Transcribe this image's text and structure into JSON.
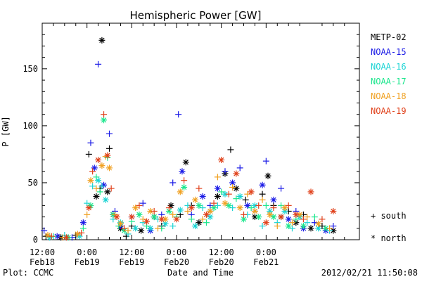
{
  "chart_data": {
    "type": "scatter",
    "title": "Hemispheric Power [GW]",
    "xlabel": "Date and Time",
    "ylabel": "P [GW]",
    "ylim": [
      0,
      190
    ],
    "xlim": [
      0,
      85
    ],
    "yticks": [
      0,
      50,
      100,
      150
    ],
    "xticks": [
      {
        "x": 0,
        "label1": "12:00",
        "label2": "Feb18"
      },
      {
        "x": 12,
        "label1": "0:00",
        "label2": "Feb19"
      },
      {
        "x": 24,
        "label1": "12:00",
        "label2": "Feb19"
      },
      {
        "x": 36,
        "label1": "0:00",
        "label2": "Feb20"
      },
      {
        "x": 48,
        "label1": "12:00",
        "label2": "Feb20"
      },
      {
        "x": 60,
        "label1": "0:00",
        "label2": "Feb21"
      }
    ],
    "x_unit": "hours after 2012-02-18 12:00",
    "legend_position": "right",
    "marker_legend": {
      "south": "+ south",
      "north": "* north"
    },
    "footer_left": "Plot: CCMC",
    "footer_right": "2012/02/21 11:50:08",
    "series": [
      {
        "name": "METP-02",
        "color": "#000000",
        "points": [
          [
            1,
            3,
            "s"
          ],
          [
            5,
            2,
            "n"
          ],
          [
            9,
            4,
            "s"
          ],
          [
            12.5,
            75,
            "s"
          ],
          [
            14.5,
            38,
            "n"
          ],
          [
            15.5,
            45,
            "s"
          ],
          [
            16,
            175,
            "n"
          ],
          [
            17.5,
            42,
            "n"
          ],
          [
            18,
            80,
            "s"
          ],
          [
            19,
            22,
            "n"
          ],
          [
            21,
            10,
            "n"
          ],
          [
            22.5,
            3,
            "s"
          ],
          [
            24,
            12,
            "s"
          ],
          [
            26.5,
            8,
            "n"
          ],
          [
            30,
            20,
            "n"
          ],
          [
            32,
            12,
            "s"
          ],
          [
            34.5,
            30,
            "n"
          ],
          [
            37,
            22,
            "s"
          ],
          [
            38.5,
            68,
            "n"
          ],
          [
            40,
            30,
            "s"
          ],
          [
            42,
            15,
            "n"
          ],
          [
            45,
            25,
            "s"
          ],
          [
            47,
            38,
            "n"
          ],
          [
            49,
            58,
            "n"
          ],
          [
            50.5,
            79,
            "s"
          ],
          [
            52,
            45,
            "n"
          ],
          [
            54.5,
            35,
            "s"
          ],
          [
            57,
            20,
            "n"
          ],
          [
            59,
            40,
            "s"
          ],
          [
            60.5,
            56,
            "n"
          ],
          [
            62,
            30,
            "s"
          ],
          [
            64,
            20,
            "n"
          ],
          [
            66,
            25,
            "s"
          ],
          [
            68,
            15,
            "n"
          ],
          [
            70,
            22,
            "s"
          ],
          [
            72,
            10,
            "n"
          ],
          [
            75,
            12,
            "s"
          ],
          [
            78,
            8,
            "n"
          ]
        ]
      },
      {
        "name": "NOAA-15",
        "color": "#1a1ae6",
        "points": [
          [
            0.5,
            8,
            "s"
          ],
          [
            4,
            3,
            "n"
          ],
          [
            8,
            2,
            "s"
          ],
          [
            11,
            15,
            "n"
          ],
          [
            13,
            85,
            "s"
          ],
          [
            14,
            63,
            "n"
          ],
          [
            15,
            154,
            "s"
          ],
          [
            16.5,
            48,
            "n"
          ],
          [
            18,
            93,
            "s"
          ],
          [
            19.5,
            25,
            "s"
          ],
          [
            21,
            12,
            "n"
          ],
          [
            24,
            20,
            "s"
          ],
          [
            27,
            32,
            "s"
          ],
          [
            29,
            8,
            "n"
          ],
          [
            32,
            22,
            "s"
          ],
          [
            35,
            50,
            "s"
          ],
          [
            36.5,
            110,
            "s"
          ],
          [
            37.5,
            60,
            "n"
          ],
          [
            40,
            22,
            "s"
          ],
          [
            43,
            38,
            "n"
          ],
          [
            45,
            30,
            "s"
          ],
          [
            47,
            45,
            "n"
          ],
          [
            49,
            60,
            "s"
          ],
          [
            51,
            50,
            "n"
          ],
          [
            53,
            63,
            "s"
          ],
          [
            55,
            30,
            "n"
          ],
          [
            57,
            25,
            "s"
          ],
          [
            59,
            48,
            "n"
          ],
          [
            60,
            69,
            "s"
          ],
          [
            62,
            35,
            "n"
          ],
          [
            64,
            45,
            "s"
          ],
          [
            66,
            18,
            "n"
          ],
          [
            68,
            25,
            "s"
          ],
          [
            70,
            10,
            "n"
          ],
          [
            73,
            15,
            "s"
          ],
          [
            76,
            8,
            "n"
          ],
          [
            78,
            12,
            "s"
          ]
        ]
      },
      {
        "name": "NOAA-16",
        "color": "#1ad4d4",
        "points": [
          [
            2,
            2,
            "n"
          ],
          [
            6,
            4,
            "s"
          ],
          [
            10,
            3,
            "n"
          ],
          [
            12,
            32,
            "s"
          ],
          [
            13.5,
            47,
            "s"
          ],
          [
            15,
            52,
            "n"
          ],
          [
            16,
            47,
            "s"
          ],
          [
            17,
            35,
            "n"
          ],
          [
            19,
            18,
            "s"
          ],
          [
            21,
            15,
            "n"
          ],
          [
            23,
            5,
            "s"
          ],
          [
            25,
            10,
            "n"
          ],
          [
            27,
            15,
            "s"
          ],
          [
            29,
            10,
            "n"
          ],
          [
            31,
            18,
            "s"
          ],
          [
            33,
            14,
            "n"
          ],
          [
            35,
            12,
            "s"
          ],
          [
            37,
            26,
            "n"
          ],
          [
            39,
            30,
            "s"
          ],
          [
            41,
            12,
            "n"
          ],
          [
            43,
            28,
            "s"
          ],
          [
            45,
            20,
            "n"
          ],
          [
            47,
            30,
            "s"
          ],
          [
            49,
            40,
            "n"
          ],
          [
            51,
            28,
            "s"
          ],
          [
            53,
            38,
            "n"
          ],
          [
            55,
            22,
            "s"
          ],
          [
            57,
            30,
            "n"
          ],
          [
            59,
            12,
            "s"
          ],
          [
            61,
            25,
            "n"
          ],
          [
            63,
            15,
            "s"
          ],
          [
            65,
            25,
            "n"
          ],
          [
            67,
            10,
            "s"
          ],
          [
            69,
            20,
            "n"
          ],
          [
            71,
            15,
            "s"
          ],
          [
            74,
            10,
            "n"
          ],
          [
            77,
            8,
            "s"
          ]
        ]
      },
      {
        "name": "NOAA-17",
        "color": "#1ae68c",
        "points": [
          [
            3,
            3,
            "s"
          ],
          [
            7,
            2,
            "n"
          ],
          [
            11,
            10,
            "s"
          ],
          [
            13,
            30,
            "n"
          ],
          [
            14.5,
            55,
            "s"
          ],
          [
            15.5,
            42,
            "s"
          ],
          [
            16.5,
            105,
            "n"
          ],
          [
            17.5,
            72,
            "s"
          ],
          [
            19,
            22,
            "n"
          ],
          [
            20.5,
            12,
            "s"
          ],
          [
            22,
            8,
            "n"
          ],
          [
            24,
            16,
            "s"
          ],
          [
            26,
            22,
            "n"
          ],
          [
            28,
            12,
            "s"
          ],
          [
            30,
            20,
            "n"
          ],
          [
            32,
            10,
            "s"
          ],
          [
            34,
            25,
            "n"
          ],
          [
            36,
            20,
            "s"
          ],
          [
            38,
            46,
            "n"
          ],
          [
            40,
            18,
            "s"
          ],
          [
            42,
            30,
            "n"
          ],
          [
            44,
            15,
            "s"
          ],
          [
            46,
            28,
            "n"
          ],
          [
            48,
            42,
            "s"
          ],
          [
            50,
            30,
            "n"
          ],
          [
            52,
            36,
            "s"
          ],
          [
            54,
            18,
            "n"
          ],
          [
            56,
            28,
            "s"
          ],
          [
            58,
            20,
            "n"
          ],
          [
            60,
            30,
            "s"
          ],
          [
            62,
            20,
            "n"
          ],
          [
            64,
            30,
            "s"
          ],
          [
            66,
            12,
            "n"
          ],
          [
            68,
            18,
            "s"
          ],
          [
            70,
            12,
            "n"
          ],
          [
            73,
            20,
            "s"
          ],
          [
            76,
            10,
            "n"
          ]
        ]
      },
      {
        "name": "NOAA-18",
        "color": "#f0a020",
        "points": [
          [
            1.5,
            4,
            "n"
          ],
          [
            5.5,
            2,
            "s"
          ],
          [
            9.5,
            5,
            "n"
          ],
          [
            12,
            22,
            "s"
          ],
          [
            13,
            52,
            "n"
          ],
          [
            14.5,
            45,
            "s"
          ],
          [
            16,
            65,
            "n"
          ],
          [
            17,
            73,
            "s"
          ],
          [
            18,
            63,
            "n"
          ],
          [
            19.5,
            22,
            "s"
          ],
          [
            21,
            14,
            "n"
          ],
          [
            23,
            8,
            "s"
          ],
          [
            25,
            28,
            "n"
          ],
          [
            27,
            18,
            "s"
          ],
          [
            29,
            25,
            "n"
          ],
          [
            31,
            10,
            "s"
          ],
          [
            33,
            18,
            "n"
          ],
          [
            35,
            22,
            "s"
          ],
          [
            37,
            42,
            "n"
          ],
          [
            39,
            25,
            "s"
          ],
          [
            41,
            35,
            "n"
          ],
          [
            43,
            18,
            "s"
          ],
          [
            45,
            25,
            "n"
          ],
          [
            47,
            55,
            "s"
          ],
          [
            49,
            32,
            "n"
          ],
          [
            51,
            46,
            "s"
          ],
          [
            53,
            28,
            "n"
          ],
          [
            55,
            40,
            "s"
          ],
          [
            57,
            25,
            "n"
          ],
          [
            59,
            35,
            "s"
          ],
          [
            61,
            22,
            "n"
          ],
          [
            63,
            12,
            "s"
          ],
          [
            65,
            28,
            "n"
          ],
          [
            67,
            15,
            "s"
          ],
          [
            69,
            22,
            "n"
          ],
          [
            71,
            20,
            "s"
          ],
          [
            74,
            14,
            "n"
          ],
          [
            77,
            10,
            "s"
          ]
        ]
      },
      {
        "name": "NOAA-19",
        "color": "#e0401a",
        "points": [
          [
            2.5,
            3,
            "s"
          ],
          [
            6.5,
            2,
            "n"
          ],
          [
            10.5,
            6,
            "s"
          ],
          [
            12.5,
            28,
            "n"
          ],
          [
            13.5,
            60,
            "s"
          ],
          [
            15,
            70,
            "n"
          ],
          [
            16.5,
            110,
            "s"
          ],
          [
            17.5,
            74,
            "n"
          ],
          [
            18.5,
            45,
            "s"
          ],
          [
            20,
            20,
            "n"
          ],
          [
            22,
            10,
            "s"
          ],
          [
            24,
            20,
            "n"
          ],
          [
            26,
            30,
            "s"
          ],
          [
            28,
            16,
            "n"
          ],
          [
            30,
            25,
            "s"
          ],
          [
            32,
            18,
            "n"
          ],
          [
            34,
            28,
            "s"
          ],
          [
            36,
            18,
            "n"
          ],
          [
            38,
            52,
            "s"
          ],
          [
            40,
            28,
            "n"
          ],
          [
            42,
            45,
            "s"
          ],
          [
            44,
            22,
            "n"
          ],
          [
            46,
            32,
            "s"
          ],
          [
            48,
            70,
            "n"
          ],
          [
            50,
            40,
            "s"
          ],
          [
            52,
            58,
            "n"
          ],
          [
            54,
            22,
            "s"
          ],
          [
            56,
            42,
            "n"
          ],
          [
            58,
            30,
            "s"
          ],
          [
            60,
            15,
            "n"
          ],
          [
            62,
            28,
            "s"
          ],
          [
            64,
            20,
            "n"
          ],
          [
            66,
            30,
            "s"
          ],
          [
            68,
            22,
            "n"
          ],
          [
            70,
            18,
            "s"
          ],
          [
            72,
            42,
            "n"
          ],
          [
            75,
            18,
            "s"
          ],
          [
            78,
            25,
            "n"
          ]
        ]
      }
    ]
  }
}
